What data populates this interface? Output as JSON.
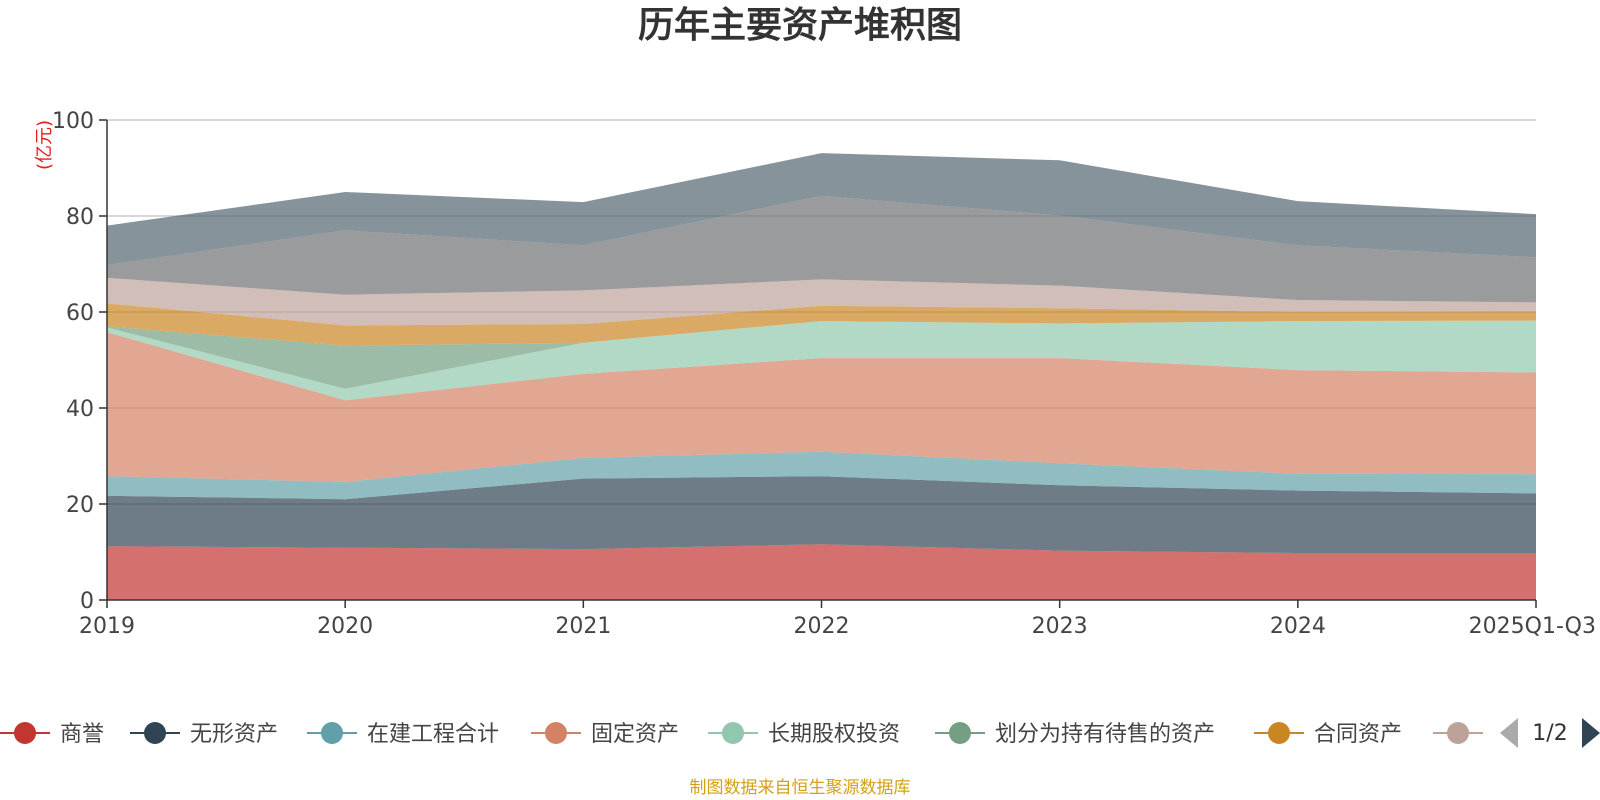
{
  "chart_data": {
    "type": "area",
    "stacked": true,
    "title": "历年主要资产堆积图",
    "ylabel": "(亿元)",
    "ylim": [
      0,
      100
    ],
    "yticks": [
      0,
      20,
      40,
      60,
      80,
      100
    ],
    "categories": [
      "2019",
      "2020",
      "2021",
      "2022",
      "2023",
      "2024",
      "2025Q1-Q3"
    ],
    "series": [
      {
        "name": "商誉",
        "color": "#c23531",
        "values": [
          11.2,
          10.9,
          10.6,
          11.6,
          10.3,
          9.8,
          9.8
        ]
      },
      {
        "name": "无形资产",
        "color": "#2f4554",
        "values": [
          10.5,
          10.1,
          14.7,
          14.2,
          13.6,
          13.0,
          12.4
        ]
      },
      {
        "name": "在建工程合计",
        "color": "#61a0a8",
        "values": [
          4.1,
          3.6,
          4.3,
          5.1,
          4.6,
          3.5,
          4.0
        ]
      },
      {
        "name": "固定资产",
        "color": "#d48265",
        "values": [
          30.0,
          17.0,
          17.5,
          19.5,
          21.9,
          21.6,
          21.2
        ]
      },
      {
        "name": "长期股权投资",
        "color": "#91c7ae",
        "values": [
          1.0,
          2.4,
          6.5,
          7.7,
          7.2,
          10.2,
          10.8
        ]
      },
      {
        "name": "划分为持有待售的资产",
        "color": "#749f83",
        "values": [
          0.2,
          9.0,
          0.0,
          0.0,
          0.0,
          0.0,
          0.0
        ]
      },
      {
        "name": "合同资产",
        "color": "#ca8622",
        "values": [
          4.8,
          4.2,
          3.9,
          3.2,
          3.2,
          1.9,
          1.9
        ]
      },
      {
        "name": "",
        "color": "#bda29a",
        "values": [
          5.3,
          6.4,
          7.0,
          5.5,
          4.7,
          2.5,
          1.9
        ]
      },
      {
        "name": "",
        "color": "#6e7074",
        "values": [
          2.7,
          13.4,
          9.4,
          17.4,
          14.6,
          11.4,
          9.4
        ]
      },
      {
        "name": "",
        "color": "#546570",
        "values": [
          8.2,
          8.0,
          9.0,
          8.9,
          11.5,
          9.2,
          9.0
        ]
      }
    ],
    "legend_position": "bottom",
    "legend_page": "1/2"
  },
  "colors": {
    "title": "#333333",
    "axis": "#333333",
    "grid": "#cccccc",
    "unit_label": "#e02020",
    "source": "#d4a017",
    "pager_inactive": "#aaaaaa",
    "pager_active": "#2f4554"
  },
  "icons": {
    "prev_page": "triangle-left-icon",
    "next_page": "triangle-right-icon"
  },
  "footer": {
    "source_text": "制图数据来自恒生聚源数据库"
  }
}
